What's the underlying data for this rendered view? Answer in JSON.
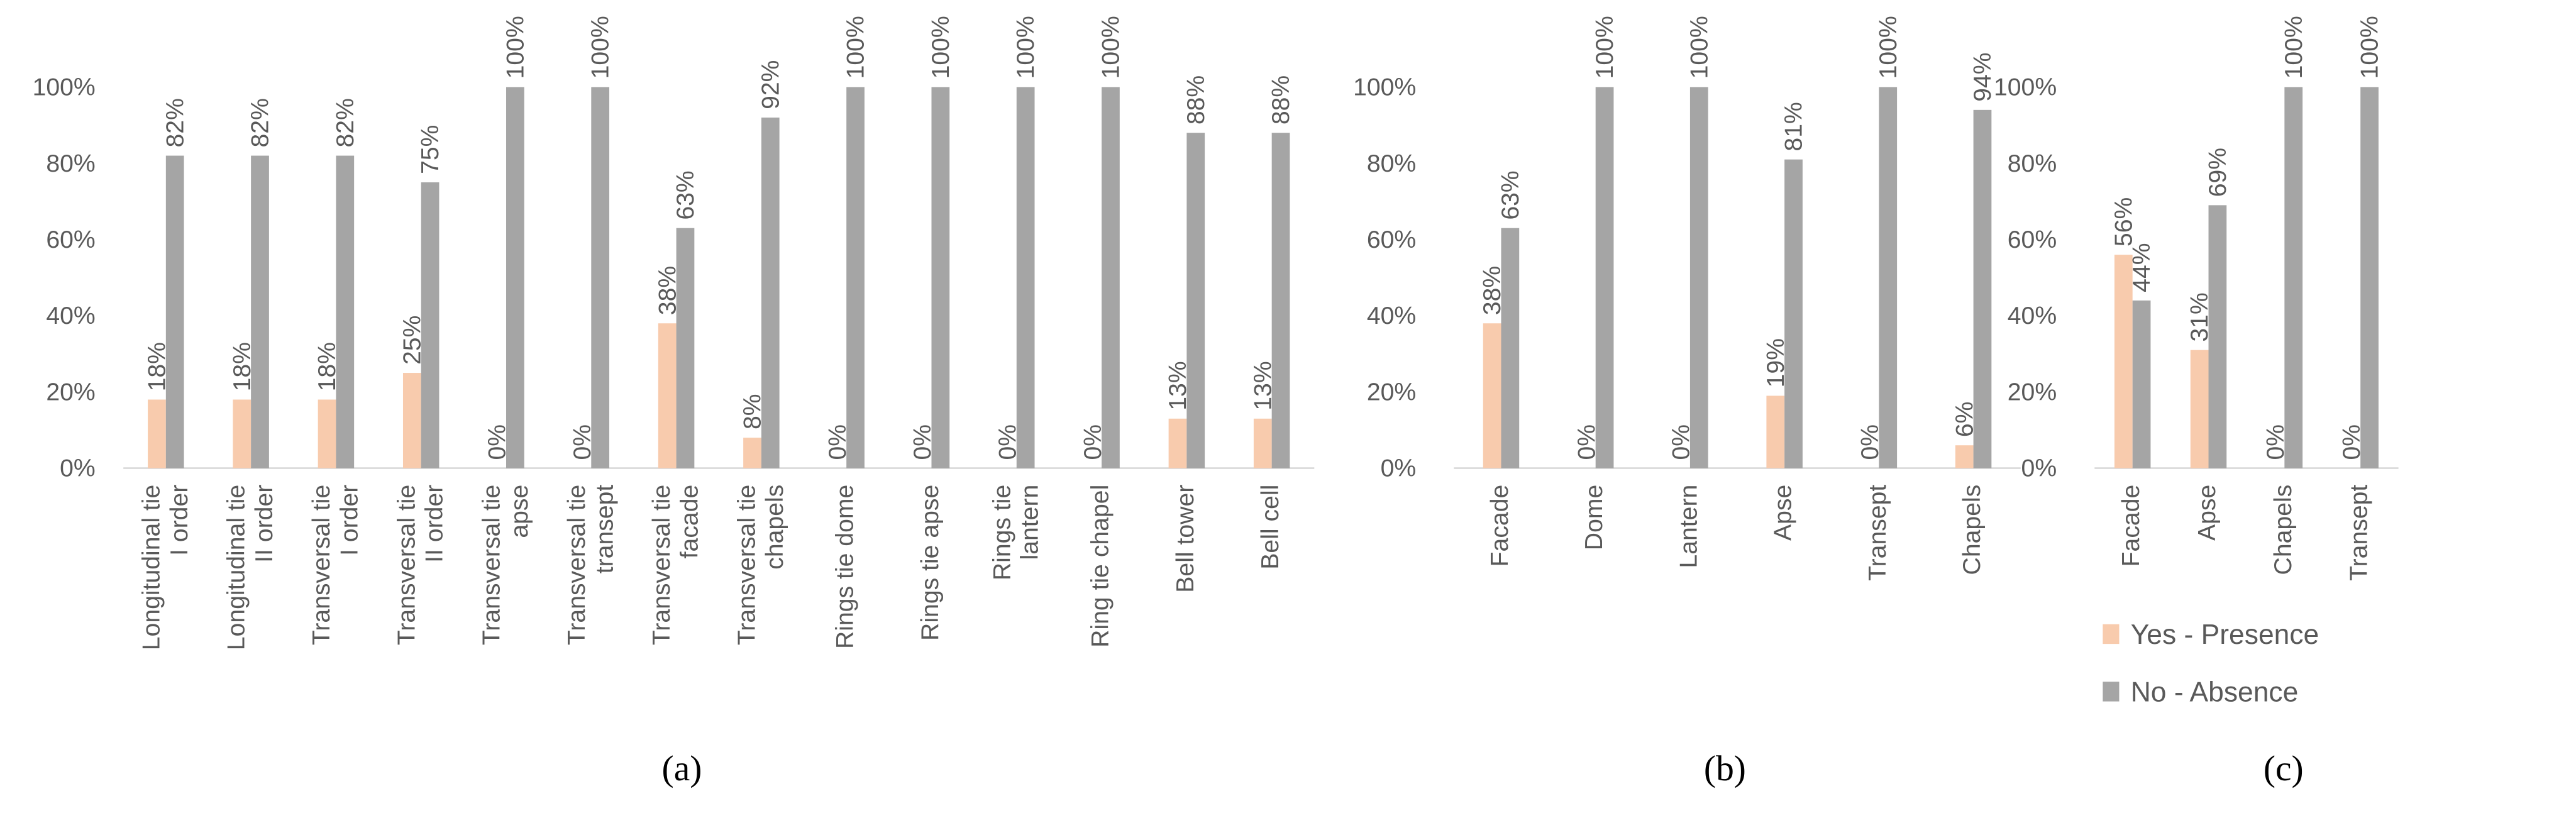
{
  "chart_data": [
    {
      "type": "bar",
      "caption": "(a)",
      "categories": [
        "Longitudinal tie I order",
        "Longitudinal tie II order",
        "Transversal tie I order",
        "Transversal tie II order",
        "Transversal tie apse",
        "Transversal tie transept",
        "Transversal tie facade",
        "Transversal tie chapels",
        "Rings tie dome",
        "Rings tie apse",
        "Rings tie lantern",
        "Ring tie chapel",
        "Bell tower",
        "Bell cell"
      ],
      "series": [
        {
          "color": "#f8cbad",
          "values": [
            18,
            18,
            18,
            25,
            0,
            0,
            38,
            8,
            0,
            0,
            0,
            0,
            13,
            13
          ],
          "value_labels": [
            "18%",
            "18%",
            "18%",
            "25%",
            "0%",
            "0%",
            "38%",
            "8%",
            "0%",
            "0%",
            "0%",
            "0%",
            "13%",
            "13%"
          ]
        },
        {
          "color": "#a5a5a5",
          "values": [
            82,
            82,
            82,
            75,
            100,
            100,
            63,
            92,
            100,
            100,
            100,
            100,
            88,
            88
          ],
          "value_labels": [
            "82%",
            "82%",
            "82%",
            "75%",
            "100%",
            "100%",
            "63%",
            "92%",
            "100%",
            "100%",
            "100%",
            "100%",
            "88%",
            "88%"
          ]
        }
      ],
      "ylim": [
        0,
        100
      ],
      "yticks": [
        {
          "value": 0,
          "label": "0%"
        },
        {
          "value": 20,
          "label": "20%"
        },
        {
          "value": 40,
          "label": "40%"
        },
        {
          "value": 60,
          "label": "60%"
        },
        {
          "value": 80,
          "label": "80%"
        },
        {
          "value": 100,
          "label": "100%"
        }
      ]
    },
    {
      "type": "bar",
      "caption": "(b)",
      "categories": [
        "Facade",
        "Dome",
        "Lantern",
        "Apse",
        "Transept",
        "Chapels"
      ],
      "series": [
        {
          "color": "#f8cbad",
          "values": [
            38,
            0,
            0,
            19,
            0,
            6
          ],
          "value_labels": [
            "38%",
            "0%",
            "0%",
            "19%",
            "0%",
            "6%"
          ]
        },
        {
          "color": "#a5a5a5",
          "values": [
            63,
            100,
            100,
            81,
            100,
            94
          ],
          "value_labels": [
            "63%",
            "100%",
            "100%",
            "81%",
            "100%",
            "94%"
          ]
        }
      ],
      "ylim": [
        0,
        100
      ],
      "yticks": [
        {
          "value": 0,
          "label": "0%"
        },
        {
          "value": 20,
          "label": "20%"
        },
        {
          "value": 40,
          "label": "40%"
        },
        {
          "value": 60,
          "label": "60%"
        },
        {
          "value": 80,
          "label": "80%"
        },
        {
          "value": 100,
          "label": "100%"
        }
      ]
    },
    {
      "type": "bar",
      "caption": "(c)",
      "categories": [
        "Facade",
        "Apse",
        "Chapels",
        "Transept"
      ],
      "series": [
        {
          "name": "Yes - Presence",
          "color": "#f8cbad",
          "values": [
            56,
            31,
            0,
            0
          ],
          "value_labels": [
            "56%",
            "31%",
            "0%",
            "0%"
          ]
        },
        {
          "name": "No - Absence",
          "color": "#a5a5a5",
          "values": [
            44,
            69,
            100,
            100
          ],
          "value_labels": [
            "44%",
            "69%",
            "100%",
            "100%"
          ]
        }
      ],
      "ylim": [
        0,
        100
      ],
      "yticks": [
        {
          "value": 0,
          "label": "0%"
        },
        {
          "value": 20,
          "label": "20%"
        },
        {
          "value": 40,
          "label": "40%"
        },
        {
          "value": 60,
          "label": "60%"
        },
        {
          "value": 80,
          "label": "80%"
        },
        {
          "value": 100,
          "label": "100%"
        }
      ]
    }
  ]
}
